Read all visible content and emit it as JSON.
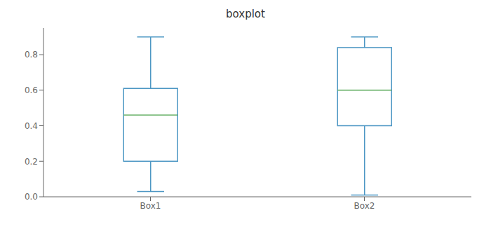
{
  "chart_data": {
    "type": "box",
    "title": "boxplot",
    "categories": [
      "Box1",
      "Box2"
    ],
    "series": [
      {
        "type": "box",
        "color": "#4d97c4",
        "values": [
          {
            "whislo": 0.03,
            "q1": 0.2,
            "q3": 0.61,
            "whishi": 0.9
          },
          {
            "whislo": 0.01,
            "q1": 0.4,
            "q3": 0.84,
            "whishi": 0.9
          }
        ]
      },
      {
        "type": "median",
        "color": "#5aaa5a",
        "values": [
          0.46,
          0.6
        ]
      }
    ],
    "ylim": [
      0.0,
      0.95
    ],
    "yticks": [
      {
        "value": 0.0,
        "label": "0.0"
      },
      0.2,
      0.4,
      0.6,
      0.8
    ],
    "grid": false
  }
}
